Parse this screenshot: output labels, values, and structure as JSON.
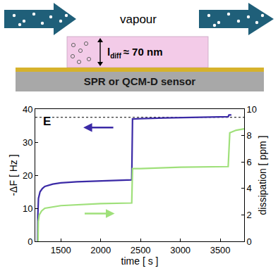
{
  "chart_data": {
    "type": "line",
    "panel_label": "E",
    "xlabel": "time [ s ]",
    "ylabel": "-ΔF [ Hz ]",
    "y2label": "dissipation [ ppm ]",
    "xlim": [
      1180,
      3800
    ],
    "xticks": [
      1500,
      2000,
      2500,
      3000,
      3500
    ],
    "ylim": [
      0,
      40
    ],
    "yticks": [
      0,
      10,
      20,
      30,
      40
    ],
    "y2lim": [
      0,
      10
    ],
    "y2ticks": [
      0,
      2,
      4,
      6,
      8,
      10
    ],
    "reference_lines": [
      {
        "y": 37.5,
        "line_style": "dotted",
        "color": "#000000"
      }
    ],
    "series": [
      {
        "color": "#3b2aa6",
        "axis": "y",
        "x": [
          1210,
          1212,
          1220,
          1240,
          1270,
          1300,
          1400,
          1500,
          1700,
          2000,
          2390,
          2400,
          2420,
          2500,
          2800,
          3200,
          3600,
          3610,
          3640
        ],
        "values": [
          0,
          8,
          13,
          15,
          16,
          16.6,
          17.3,
          17.7,
          18.0,
          18.3,
          18.6,
          37.0,
          37.0,
          37.1,
          37.3,
          37.5,
          37.7,
          38.2,
          38.2
        ]
      },
      {
        "color": "#9fe07a",
        "axis": "y2",
        "x": [
          1215,
          1218,
          1230,
          1260,
          1300,
          1500,
          2000,
          2390,
          2400,
          2500,
          3000,
          3600,
          3620,
          3700,
          3800
        ],
        "values": [
          0,
          1.5,
          2.0,
          2.3,
          2.5,
          2.7,
          2.85,
          2.9,
          5.5,
          5.5,
          5.6,
          5.65,
          8.2,
          8.4,
          8.5
        ]
      }
    ]
  },
  "diagram": {
    "flow_label": "vapour",
    "diffusion_length": {
      "symbol": "l",
      "subscript": "diff",
      "value_text": "≈ 70 nm"
    },
    "sensor_label": "SPR or QCM-D sensor"
  }
}
